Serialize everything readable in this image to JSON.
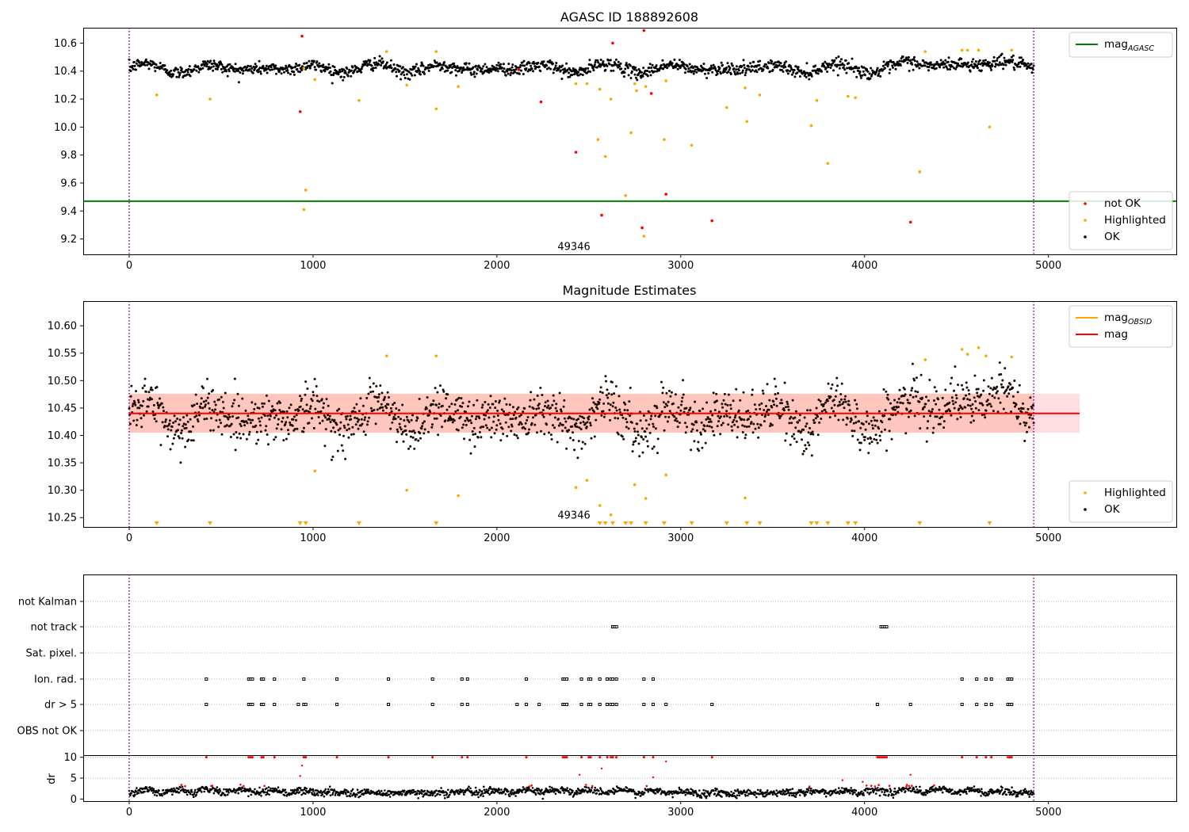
{
  "chart_data": [
    {
      "id": "top",
      "type": "scatter",
      "title": "AGASC ID 188892608",
      "xlim": [
        -250,
        5700
      ],
      "ylim": [
        9.09,
        10.71
      ],
      "xticks": [
        0,
        1000,
        2000,
        3000,
        4000,
        5000
      ],
      "yticks": [
        9.2,
        9.4,
        9.6,
        9.8,
        10.0,
        10.2,
        10.4,
        10.6
      ],
      "yfmt": 1,
      "vlines": [
        0,
        4920
      ],
      "annotation": {
        "x": 2330,
        "y": 9.12,
        "text": "49346"
      },
      "hlines": [
        {
          "name": "mag_AGASC",
          "y": 9.47,
          "color": "#008000"
        }
      ],
      "colors": {
        "ok": "#000000",
        "highlighted": "#ffa500",
        "not_ok": "#ff0000",
        "vline": "#800080"
      },
      "ok_band": {
        "x": [
          0,
          4920
        ],
        "base": 10.42,
        "amp1": 0.035,
        "noise": 0.022
      },
      "ok_segments": [
        {
          "x": [
            4200,
            4920
          ],
          "offset": 0.05
        }
      ],
      "highlighted": [
        [
          150,
          10.23
        ],
        [
          440,
          10.2
        ],
        [
          950,
          10.42
        ],
        [
          960,
          9.55
        ],
        [
          1010,
          10.34
        ],
        [
          950,
          9.41
        ],
        [
          1250,
          10.19
        ],
        [
          1400,
          10.54
        ],
        [
          1510,
          10.3
        ],
        [
          1670,
          10.54
        ],
        [
          1670,
          10.13
        ],
        [
          1790,
          10.29
        ],
        [
          2430,
          10.31
        ],
        [
          2490,
          10.31
        ],
        [
          2560,
          10.27
        ],
        [
          2550,
          9.91
        ],
        [
          2590,
          9.79
        ],
        [
          2620,
          10.2
        ],
        [
          2700,
          9.51
        ],
        [
          2730,
          9.96
        ],
        [
          2750,
          10.31
        ],
        [
          2760,
          10.26
        ],
        [
          2810,
          10.29
        ],
        [
          2800,
          9.22
        ],
        [
          2910,
          9.91
        ],
        [
          2920,
          10.33
        ],
        [
          3060,
          9.87
        ],
        [
          3250,
          10.14
        ],
        [
          3350,
          10.28
        ],
        [
          3360,
          10.04
        ],
        [
          3430,
          10.23
        ],
        [
          3710,
          10.01
        ],
        [
          3740,
          10.19
        ],
        [
          3800,
          9.74
        ],
        [
          3910,
          10.22
        ],
        [
          3950,
          10.21
        ],
        [
          4300,
          9.68
        ],
        [
          4330,
          10.54
        ],
        [
          4530,
          10.55
        ],
        [
          4560,
          10.55
        ],
        [
          4620,
          10.55
        ],
        [
          4680,
          10.0
        ],
        [
          4800,
          10.55
        ]
      ],
      "not_ok": [
        [
          930,
          10.11
        ],
        [
          940,
          10.65
        ],
        [
          2120,
          10.41
        ],
        [
          2240,
          10.18
        ],
        [
          2430,
          9.82
        ],
        [
          2570,
          9.37
        ],
        [
          2630,
          10.6
        ],
        [
          2790,
          9.28
        ],
        [
          2800,
          10.69
        ],
        [
          2840,
          10.24
        ],
        [
          2920,
          9.52
        ],
        [
          3170,
          9.33
        ],
        [
          4250,
          9.32
        ]
      ],
      "legends": [
        {
          "pos": "top-right",
          "items": [
            {
              "kind": "line",
              "color": "#008000",
              "label": "mag",
              "sub": "AGASC"
            }
          ]
        },
        {
          "pos": "bottom-right",
          "items": [
            {
              "kind": "dot",
              "color": "#ff0000",
              "label": "not OK"
            },
            {
              "kind": "dot",
              "color": "#ffa500",
              "label": "Highlighted"
            },
            {
              "kind": "dot",
              "color": "#000000",
              "label": "OK"
            }
          ]
        }
      ]
    },
    {
      "id": "middle",
      "type": "scatter",
      "title": "Magnitude Estimates",
      "xlim": [
        -250,
        5700
      ],
      "ylim": [
        10.233,
        10.645
      ],
      "xticks": [
        0,
        1000,
        2000,
        3000,
        4000,
        5000
      ],
      "yticks": [
        10.25,
        10.3,
        10.35,
        10.4,
        10.45,
        10.5,
        10.55,
        10.6
      ],
      "yfmt": 2,
      "vlines": [
        0,
        4920
      ],
      "annotation": {
        "x": 2330,
        "y": 10.248,
        "text": "49346"
      },
      "mag_line": {
        "name": "mag",
        "y": 10.44,
        "x": [
          0,
          5170
        ],
        "color": "#ff0000"
      },
      "band": {
        "y": [
          10.405,
          10.476
        ],
        "x": [
          0,
          5170
        ],
        "color": "#ff7f50"
      },
      "colors": {
        "ok": "#000000",
        "highlighted": "#ffa500",
        "vline": "#800080"
      },
      "ok_band": {
        "x": [
          0,
          4920
        ],
        "base": 10.435,
        "amp1": 0.03,
        "noise": 0.022
      },
      "ok_segments": [
        {
          "x": [
            4250,
            4920
          ],
          "offset": 0.045
        }
      ],
      "highlighted": [
        [
          1400,
          10.545
        ],
        [
          1670,
          10.545
        ],
        [
          1510,
          10.3
        ],
        [
          1790,
          10.29
        ],
        [
          1010,
          10.335
        ],
        [
          2430,
          10.305
        ],
        [
          2490,
          10.318
        ],
        [
          2560,
          10.272
        ],
        [
          2620,
          10.255
        ],
        [
          2750,
          10.31
        ],
        [
          2810,
          10.285
        ],
        [
          2920,
          10.328
        ],
        [
          3350,
          10.286
        ],
        [
          4330,
          10.538
        ],
        [
          4530,
          10.557
        ],
        [
          4560,
          10.548
        ],
        [
          4620,
          10.56
        ],
        [
          4660,
          10.545
        ],
        [
          4800,
          10.543
        ]
      ],
      "markers_below": [
        150,
        440,
        930,
        960,
        1250,
        1670,
        2560,
        2590,
        2630,
        2700,
        2730,
        2810,
        2910,
        3060,
        3250,
        3360,
        3430,
        3710,
        3740,
        3800,
        3910,
        3950,
        4300,
        4680
      ],
      "legends": [
        {
          "pos": "top-right",
          "items": [
            {
              "kind": "line",
              "color": "#ffa500",
              "label": "mag",
              "sub": "OBSID"
            },
            {
              "kind": "line",
              "color": "#ff0000",
              "label": "mag"
            }
          ]
        },
        {
          "pos": "bottom-right",
          "items": [
            {
              "kind": "dot",
              "color": "#ffa500",
              "label": "Highlighted"
            },
            {
              "kind": "dot",
              "color": "#000000",
              "label": "OK"
            }
          ]
        }
      ]
    },
    {
      "id": "flags",
      "type": "scatter",
      "xlim": [
        -250,
        5700
      ],
      "vlines": [
        0,
        4920
      ],
      "rows": [
        "not Kalman",
        "not track",
        "Sat. pixel.",
        "Ion. rad.",
        "dr > 5",
        "OBS not OK"
      ],
      "points": {
        "not track": [
          2630,
          2640,
          2650,
          4090,
          4100,
          4110,
          4120
        ],
        "Ion. rad.": [
          420,
          650,
          660,
          670,
          720,
          730,
          790,
          950,
          1130,
          1410,
          1650,
          1810,
          1840,
          2160,
          2360,
          2370,
          2380,
          2460,
          2500,
          2510,
          2560,
          2600,
          2620,
          2630,
          2650,
          2800,
          2850,
          4530,
          4610,
          4660,
          4690,
          4780,
          4790,
          4800
        ],
        "dr > 5": [
          420,
          650,
          660,
          670,
          720,
          730,
          790,
          920,
          950,
          960,
          1130,
          1410,
          1650,
          1810,
          1840,
          2110,
          2160,
          2230,
          2360,
          2370,
          2380,
          2460,
          2500,
          2510,
          2560,
          2600,
          2620,
          2630,
          2650,
          2800,
          2850,
          2920,
          3170,
          4070,
          4250,
          4530,
          4610,
          4660,
          4690,
          4780,
          4790,
          4800
        ]
      }
    },
    {
      "id": "dr",
      "type": "scatter",
      "ylabel": "dr",
      "xlim": [
        -250,
        5700
      ],
      "ylim": [
        -0.5,
        10.5
      ],
      "xticks": [
        0,
        1000,
        2000,
        3000,
        4000,
        5000
      ],
      "yticks": [
        0,
        5,
        10
      ],
      "vlines": [
        0,
        4920
      ],
      "red_at_10": [
        420,
        650,
        660,
        670,
        720,
        730,
        790,
        950,
        960,
        1130,
        1410,
        1650,
        1810,
        1840,
        2160,
        2360,
        2370,
        2380,
        2460,
        2500,
        2510,
        2560,
        2600,
        2620,
        2630,
        2650,
        2800,
        2850,
        3170,
        4070,
        4080,
        4090,
        4100,
        4110,
        4120,
        4530,
        4610,
        4660,
        4690,
        4780,
        4790,
        4800
      ],
      "red_scatter": [
        [
          940,
          8
        ],
        [
          930,
          5.5
        ],
        [
          2450,
          5.8
        ],
        [
          2570,
          7.3
        ],
        [
          2850,
          5.2
        ],
        [
          2920,
          9
        ],
        [
          4250,
          5.8
        ],
        [
          3880,
          4.5
        ],
        [
          3990,
          4.1
        ]
      ]
    }
  ]
}
